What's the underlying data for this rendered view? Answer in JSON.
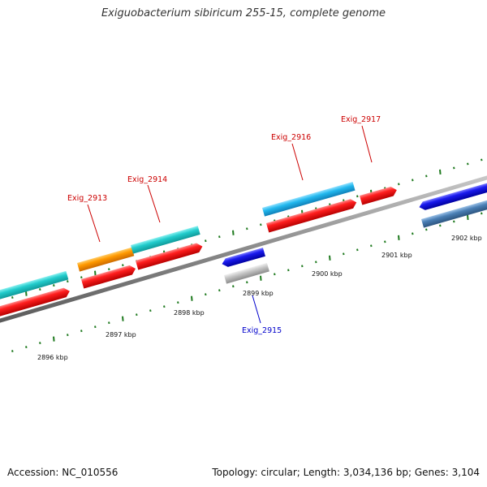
{
  "title": "Exiguobacterium sibiricum 255-15, complete genome",
  "footer": {
    "accession": "Accession: NC_010556",
    "summary": "Topology: circular; Length: 3,034,136 bp; Genes: 3,104"
  },
  "ticks": [
    {
      "kbp": 2896,
      "label": "2896 kbp"
    },
    {
      "kbp": 2897,
      "label": "2897 kbp"
    },
    {
      "kbp": 2898,
      "label": "2898 kbp"
    },
    {
      "kbp": 2899,
      "label": "2899 kbp"
    },
    {
      "kbp": 2900,
      "label": "2900 kbp"
    },
    {
      "kbp": 2901,
      "label": "2901 kbp"
    },
    {
      "kbp": 2902,
      "label": "2902 kbp"
    }
  ],
  "gene_labels": [
    {
      "name": "Exig_2913",
      "color": "#cc0000"
    },
    {
      "name": "Exig_2914",
      "color": "#cc0000"
    },
    {
      "name": "Exig_2915",
      "color": "#0000cc"
    },
    {
      "name": "Exig_2916",
      "color": "#cc0000"
    },
    {
      "name": "Exig_2917",
      "color": "#cc0000"
    }
  ],
  "colors": {
    "backbone": "#777777",
    "tick_mark": "#1f7a1f",
    "cds_forward": "#ee1111",
    "cds_reverse": "#1111dd",
    "gene_cyan": "#22cccc",
    "gene_skyblue": "#22b8ee",
    "gene_orange": "#ff9900",
    "gene_steelblue": "#4a7fb5",
    "gene_grey": "#bbbbbb"
  }
}
